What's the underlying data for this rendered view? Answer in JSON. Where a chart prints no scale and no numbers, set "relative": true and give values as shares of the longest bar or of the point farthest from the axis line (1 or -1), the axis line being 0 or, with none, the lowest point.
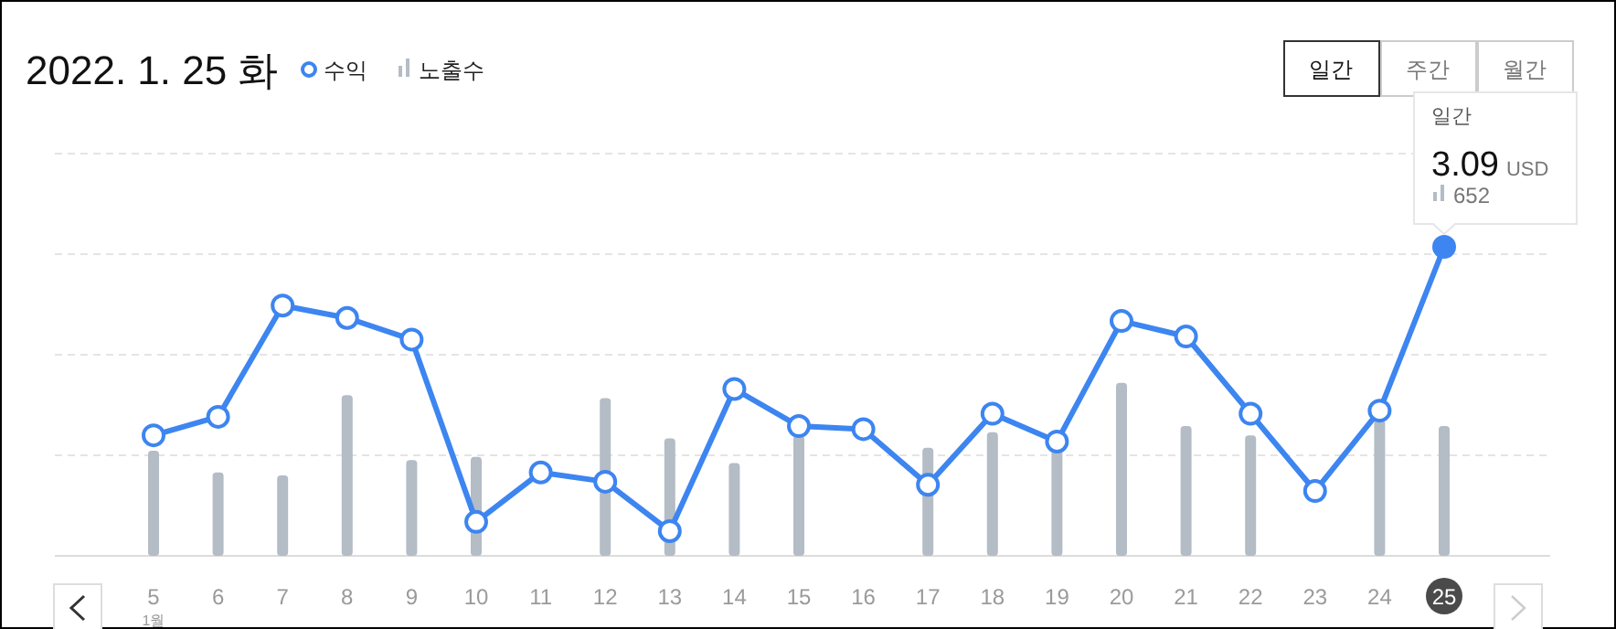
{
  "chart_data": {
    "type": "line",
    "title": "2022. 1. 25 화",
    "relative": true,
    "grid": "y",
    "legend": "top left",
    "marker": "circle",
    "line_style": "solid",
    "categories": [
      "5",
      "6",
      "7",
      "8",
      "9",
      "10",
      "11",
      "12",
      "13",
      "14",
      "15",
      "16",
      "17",
      "18",
      "19",
      "20",
      "21",
      "22",
      "23",
      "24",
      "25"
    ],
    "series": [
      {
        "name": "수익",
        "color": "#3d85f0",
        "values": [
          0.39,
          0.45,
          0.81,
          0.77,
          0.7,
          0.11,
          0.27,
          0.24,
          0.08,
          0.54,
          0.42,
          0.41,
          0.23,
          0.46,
          0.37,
          0.76,
          0.71,
          0.46,
          0.21,
          0.47,
          1.0
        ]
      },
      {
        "name": "노출수",
        "type": "bar",
        "color": "#b4bcc6",
        "values": [
          0.34,
          0.27,
          0.26,
          0.52,
          0.31,
          0.32,
          null,
          0.51,
          0.38,
          0.3,
          0.39,
          null,
          0.35,
          0.4,
          0.35,
          0.56,
          0.42,
          0.39,
          null,
          0.44,
          0.42
        ]
      }
    ],
    "annotations": [
      "일간",
      "주간",
      "월간",
      "일간",
      "3.09",
      "USD",
      "652",
      "1월"
    ]
  }
}
